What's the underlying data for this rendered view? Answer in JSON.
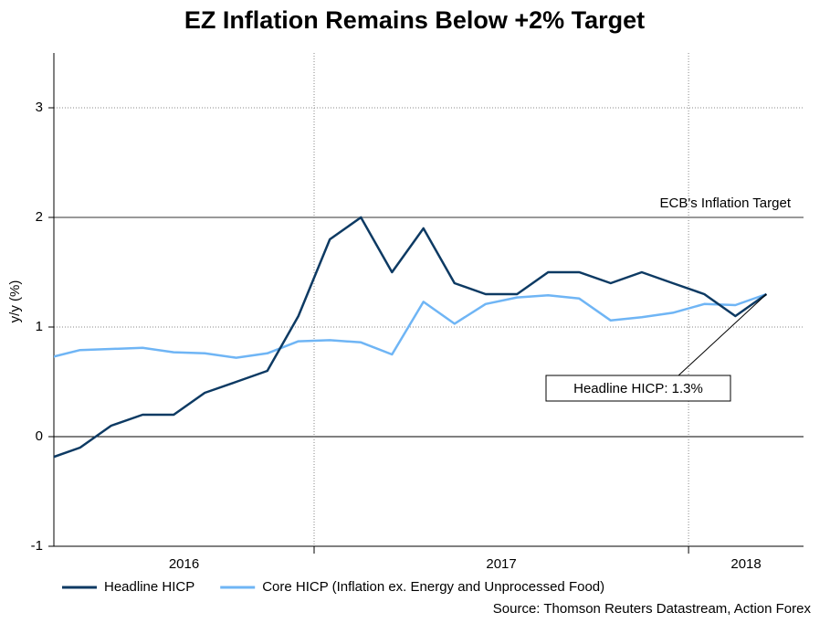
{
  "chart_data": {
    "type": "line",
    "title": "EZ Inflation Remains Below +2% Target",
    "y_label": "y/y (%)",
    "source": "Source: Thomson Reuters Datastream, Action Forex",
    "x": [
      2016.292,
      2016.375,
      2016.458,
      2016.542,
      2016.625,
      2016.708,
      2016.792,
      2016.875,
      2016.958,
      2017.042,
      2017.125,
      2017.208,
      2017.292,
      2017.375,
      2017.458,
      2017.542,
      2017.625,
      2017.708,
      2017.792,
      2017.875,
      2017.958,
      2018.042,
      2018.125,
      2018.208
    ],
    "series": [
      {
        "name": "Headline HICP",
        "color": "#0d3a63",
        "values": [
          -0.2,
          -0.1,
          0.1,
          0.2,
          0.2,
          0.4,
          0.5,
          0.6,
          1.1,
          1.8,
          2.0,
          1.5,
          1.9,
          1.4,
          1.3,
          1.3,
          1.5,
          1.5,
          1.4,
          1.5,
          1.4,
          1.3,
          1.1,
          1.3
        ]
      },
      {
        "name": "Core HICP (Inflation ex. Energy and Unprocessed Food)",
        "color": "#6fb5f5",
        "values": [
          0.72,
          0.79,
          0.8,
          0.81,
          0.77,
          0.76,
          0.72,
          0.76,
          0.87,
          0.88,
          0.86,
          0.75,
          1.23,
          1.03,
          1.21,
          1.27,
          1.29,
          1.26,
          1.06,
          1.09,
          1.13,
          1.21,
          1.2,
          1.3
        ]
      }
    ],
    "xlim": [
      2016.305,
      2018.307
    ],
    "xticks": [
      2016,
      2017,
      2018
    ],
    "ylim": [
      -1,
      3.5
    ],
    "yticks": [
      -1,
      0,
      1,
      2,
      3
    ],
    "grid": true,
    "reference_line": {
      "value": 2,
      "label": "ECB's Inflation Target"
    },
    "annotation": "Headline HICP: 1.3%",
    "legend": "bottom"
  }
}
